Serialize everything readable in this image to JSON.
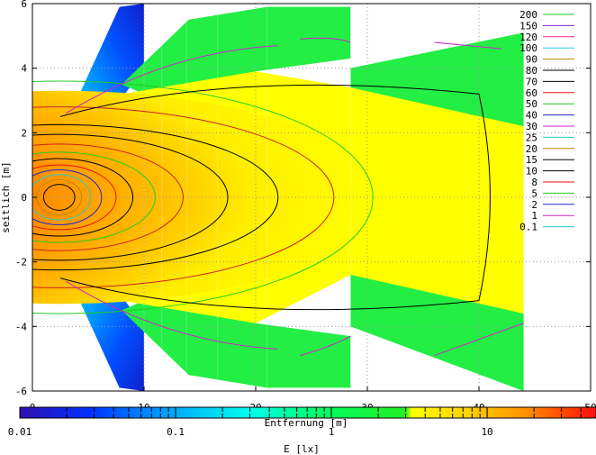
{
  "chart_data": {
    "type": "heatmap",
    "title": "",
    "xlabel": "Entfernung [m]",
    "ylabel": "seitlich [m]",
    "xlim": [
      0,
      50
    ],
    "ylim": [
      -6,
      6
    ],
    "x_ticks": [
      "0",
      "10",
      "20",
      "30",
      "40",
      "50"
    ],
    "y_ticks": [
      "6",
      "4",
      "2",
      "0",
      "-2",
      "-4",
      "-6"
    ],
    "grid": true,
    "legend_position": "top-right",
    "contour_levels": [
      {
        "label": "200",
        "color": "#22cc22"
      },
      {
        "label": "150",
        "color": "#8822cc"
      },
      {
        "label": "120",
        "color": "#ff2299"
      },
      {
        "label": "100",
        "color": "#22ccee"
      },
      {
        "label": "90",
        "color": "#bb8800"
      },
      {
        "label": "80",
        "color": "#000000"
      },
      {
        "label": "70",
        "color": "#000000"
      },
      {
        "label": "60",
        "color": "#ee1111"
      },
      {
        "label": "50",
        "color": "#22cc22"
      },
      {
        "label": "40",
        "color": "#2222cc"
      },
      {
        "label": "30",
        "color": "#cc22cc"
      },
      {
        "label": "25",
        "color": "#22cccc"
      },
      {
        "label": "20",
        "color": "#bb8800"
      },
      {
        "label": "15",
        "color": "#000000"
      },
      {
        "label": "10",
        "color": "#000000"
      },
      {
        "label": "8",
        "color": "#ee1111"
      },
      {
        "label": "5",
        "color": "#22cc22"
      },
      {
        "label": "2",
        "color": "#2222cc"
      },
      {
        "label": "1",
        "color": "#cc22cc"
      },
      {
        "label": "0.1",
        "color": "#22cccc"
      }
    ],
    "colorbar": {
      "label": "E [lx]",
      "scale": "log",
      "range": [
        0.01,
        50
      ],
      "tick_labels": [
        "0.01",
        "0.1",
        "1",
        "10"
      ],
      "tick_values": [
        0.01,
        0.1,
        1,
        10
      ],
      "colors": [
        "#3010b0",
        "#0030ff",
        "#00a0ff",
        "#00ffee",
        "#00ff66",
        "#22ee22",
        "#ffff00",
        "#ffd000",
        "#ff9000",
        "#ff4000",
        "#ff1010"
      ]
    }
  }
}
